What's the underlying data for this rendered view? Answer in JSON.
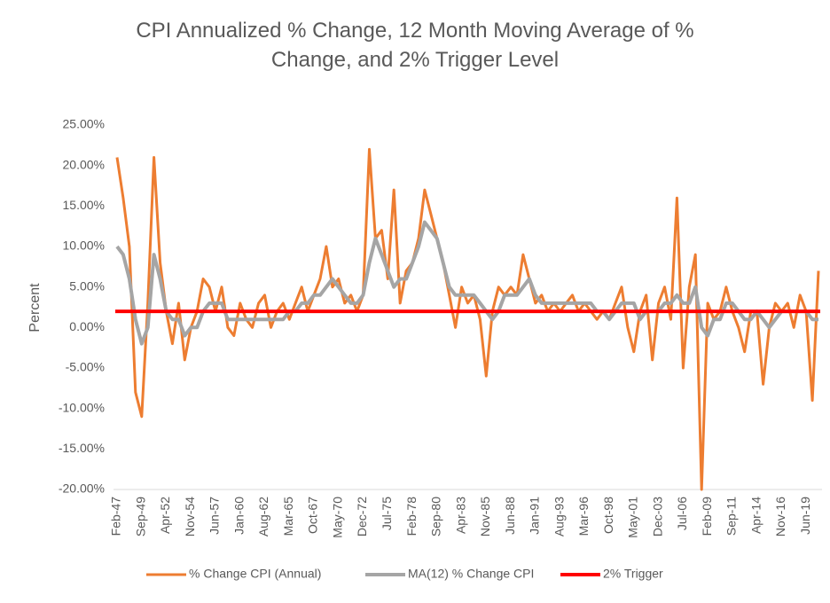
{
  "chart_data": {
    "type": "line",
    "title": "CPI Annualized % Change, 12 Month Moving Average of % Change, and 2% Trigger Level",
    "y_label": "Percent",
    "categories": [
      "Feb-47",
      null,
      null,
      null,
      "Sep-49",
      null,
      null,
      null,
      "Apr-52",
      null,
      null,
      null,
      "Nov-54",
      null,
      null,
      null,
      "Jun-57",
      null,
      null,
      null,
      "Jan-60",
      null,
      null,
      null,
      "Aug-62",
      null,
      null,
      null,
      "Mar-65",
      null,
      null,
      null,
      "Oct-67",
      null,
      null,
      null,
      "May-70",
      null,
      null,
      null,
      "Dec-72",
      null,
      null,
      null,
      "Jul-75",
      null,
      null,
      null,
      "Feb-78",
      null,
      null,
      null,
      "Sep-80",
      null,
      null,
      null,
      "Apr-83",
      null,
      null,
      null,
      "Nov-85",
      null,
      null,
      null,
      "Jun-88",
      null,
      null,
      null,
      "Jan-91",
      null,
      null,
      null,
      "Aug-93",
      null,
      null,
      null,
      "Mar-96",
      null,
      null,
      null,
      "Oct-98",
      null,
      null,
      null,
      "May-01",
      null,
      null,
      null,
      "Dec-03",
      null,
      null,
      null,
      "Jul-06",
      null,
      null,
      null,
      "Feb-09",
      null,
      null,
      null,
      "Sep-11",
      null,
      null,
      null,
      "Apr-14",
      null,
      null,
      null,
      "Nov-16",
      null,
      null,
      null,
      "Jun-19",
      null,
      null
    ],
    "series": [
      {
        "name": "% Change CPI (Annual)",
        "color": "#ed7d31",
        "width": 3,
        "values": [
          21,
          16,
          10,
          -8,
          -11,
          3,
          21,
          8,
          2,
          -2,
          3,
          -4,
          0,
          2,
          6,
          5,
          2,
          5,
          0,
          -1,
          3,
          1,
          0,
          3,
          4,
          0,
          2,
          3,
          1,
          3,
          5,
          2,
          4,
          6,
          10,
          5,
          6,
          3,
          4,
          2,
          4,
          22,
          11,
          12,
          6,
          17,
          3,
          7,
          8,
          11,
          17,
          14,
          11,
          8,
          4,
          0,
          5,
          3,
          4,
          1,
          -6,
          2,
          5,
          4,
          5,
          4,
          9,
          6,
          3,
          4,
          2,
          3,
          2,
          3,
          4,
          2,
          3,
          2,
          1,
          2,
          1,
          3,
          5,
          0,
          -3,
          2,
          4,
          -4,
          3,
          5,
          1,
          16,
          -5,
          5,
          9,
          -20,
          3,
          1,
          2,
          5,
          2,
          0,
          -3,
          2,
          2,
          -7,
          0,
          3,
          2,
          3,
          0,
          4,
          2,
          -9,
          7
        ]
      },
      {
        "name": "MA(12) % Change CPI",
        "color": "#a5a5a5",
        "width": 4,
        "values": [
          10,
          9,
          6,
          1,
          -2,
          0,
          9,
          6,
          2,
          1,
          1,
          -1,
          0,
          0,
          2,
          3,
          3,
          3,
          1,
          1,
          1,
          1,
          1,
          1,
          1,
          1,
          1,
          1,
          2,
          2,
          3,
          3,
          4,
          4,
          5,
          6,
          5,
          4,
          3,
          3,
          4,
          8,
          11,
          9,
          7,
          5,
          6,
          6,
          8,
          10,
          13,
          12,
          11,
          8,
          5,
          4,
          4,
          4,
          4,
          3,
          2,
          1,
          2,
          4,
          4,
          4,
          5,
          6,
          4,
          3,
          3,
          3,
          3,
          3,
          3,
          3,
          3,
          3,
          2,
          2,
          1,
          2,
          3,
          3,
          3,
          1,
          2,
          2,
          2,
          3,
          3,
          4,
          3,
          3,
          5,
          0,
          -1,
          1,
          1,
          3,
          3,
          2,
          1,
          1,
          2,
          1,
          0,
          1,
          2,
          2,
          2,
          2,
          2,
          1,
          1
        ]
      }
    ],
    "reference_line": {
      "name": "2% Trigger",
      "color": "#ff0000",
      "value": 2
    },
    "ylim": [
      -20,
      25
    ],
    "yticks": [
      {
        "value": -20,
        "label": "-20.00%"
      },
      {
        "value": -15,
        "label": "-15.00%"
      },
      {
        "value": -10,
        "label": "-10.00%"
      },
      {
        "value": -5,
        "label": "-5.00%"
      },
      {
        "value": 0,
        "label": "0.00%"
      },
      {
        "value": 5,
        "label": "5.00%"
      },
      {
        "value": 10,
        "label": "10.00%"
      },
      {
        "value": 15,
        "label": "15.00%"
      },
      {
        "value": 20,
        "label": "20.00%"
      },
      {
        "value": 25,
        "label": "25.00%"
      }
    ],
    "grid": false
  }
}
